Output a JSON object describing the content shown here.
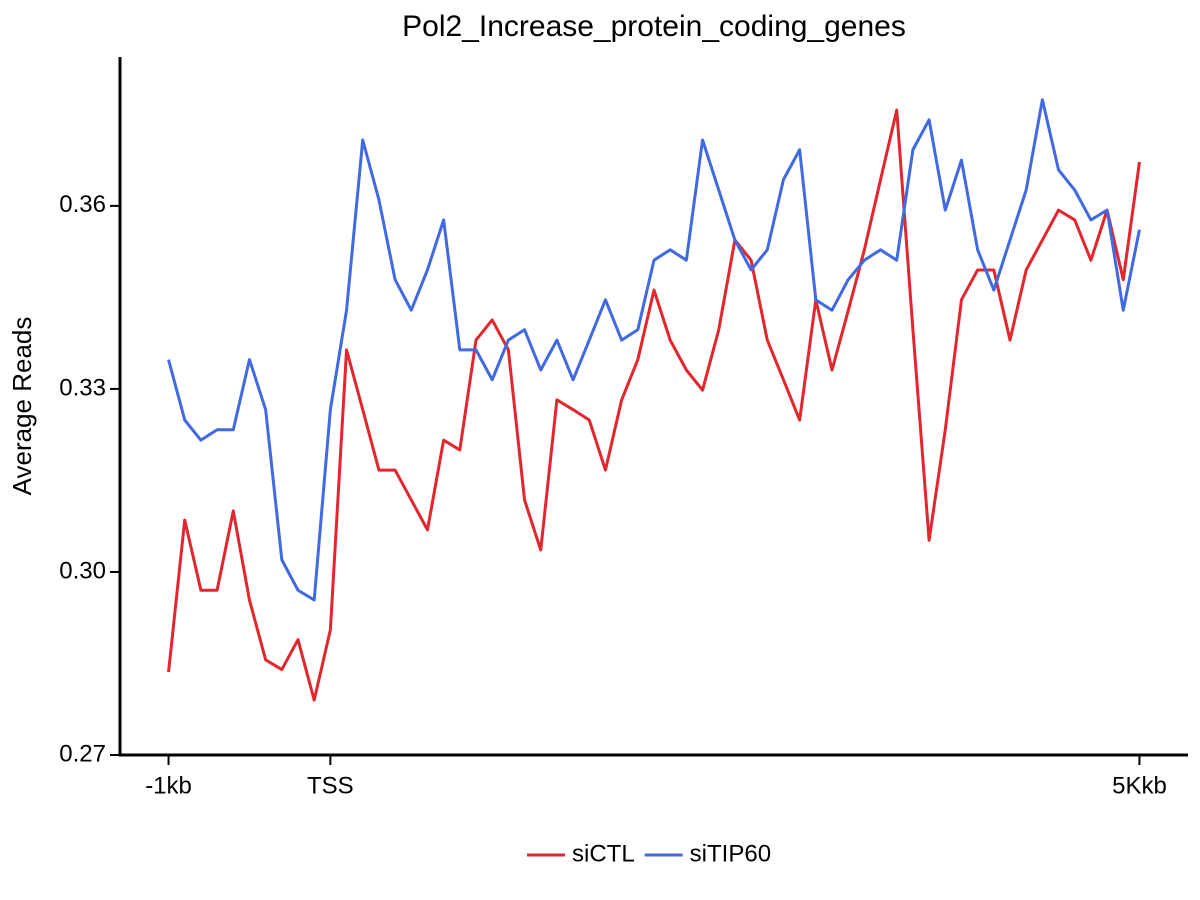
{
  "chart_data": {
    "type": "line",
    "title": "Pol2_Increase_protein_coding_genes",
    "y_label": "Average Reads",
    "x": [
      -1,
      -0.9,
      -0.8,
      -0.7,
      -0.6,
      -0.5,
      -0.4,
      -0.3,
      -0.2,
      -0.1,
      0,
      0.1,
      0.2,
      0.3,
      0.4,
      0.5,
      0.6,
      0.7,
      0.8,
      0.9,
      1,
      1.1,
      1.2,
      1.3,
      1.4,
      1.5,
      1.6,
      1.7,
      1.8,
      1.9,
      2,
      2.1,
      2.2,
      2.3,
      2.4,
      2.5,
      2.6,
      2.7,
      2.8,
      2.9,
      3,
      3.1,
      3.2,
      3.3,
      3.4,
      3.5,
      3.6,
      3.7,
      3.8,
      3.9,
      4,
      4.1,
      4.2,
      4.3,
      4.4,
      4.5,
      4.6,
      4.7,
      4.8,
      4.9,
      5
    ],
    "series": [
      {
        "name": "siCTL",
        "color": "#e3262d",
        "values": [
          0.2836,
          0.3085,
          0.297,
          0.297,
          0.31,
          0.2954,
          0.2856,
          0.284,
          0.2889,
          0.279,
          0.2905,
          0.3364,
          0.3266,
          0.3167,
          0.3167,
          0.3118,
          0.3069,
          0.3216,
          0.32,
          0.338,
          0.3413,
          0.3364,
          0.3118,
          0.3036,
          0.3282,
          0.3266,
          0.3249,
          0.3167,
          0.3282,
          0.3348,
          0.3462,
          0.338,
          0.3331,
          0.3298,
          0.3397,
          0.3544,
          0.3511,
          0.338,
          0.3315,
          0.3249,
          0.3446,
          0.3331,
          0.3428,
          0.3528,
          0.3643,
          0.3757,
          0.3397,
          0.3052,
          0.3233,
          0.3446,
          0.3495,
          0.3495,
          0.338,
          0.3495,
          0.3544,
          0.3593,
          0.3577,
          0.3511,
          0.3593,
          0.3479,
          0.3672
        ]
      },
      {
        "name": "siTIP60",
        "color": "#4169e1",
        "values": [
          0.3348,
          0.3249,
          0.3216,
          0.3233,
          0.3233,
          0.3348,
          0.3266,
          0.302,
          0.297,
          0.2954,
          0.3266,
          0.3429,
          0.3708,
          0.361,
          0.3479,
          0.3429,
          0.3495,
          0.3577,
          0.3364,
          0.3364,
          0.3315,
          0.338,
          0.3397,
          0.3331,
          0.338,
          0.3315,
          0.338,
          0.3446,
          0.338,
          0.3397,
          0.3511,
          0.3528,
          0.3511,
          0.3708,
          0.3626,
          0.3544,
          0.3495,
          0.3528,
          0.3643,
          0.3692,
          0.3446,
          0.3429,
          0.3479,
          0.3511,
          0.3528,
          0.3511,
          0.3692,
          0.3741,
          0.3593,
          0.3675,
          0.3528,
          0.3462,
          0.3544,
          0.3626,
          0.3774,
          0.3659,
          0.3626,
          0.3577,
          0.3593,
          0.3429,
          0.3561
        ]
      }
    ],
    "xlim": [
      -1.3,
      5.3
    ],
    "xticks": [
      {
        "value": -1,
        "label": "-1kb"
      },
      {
        "value": 0,
        "label": "TSS"
      },
      {
        "value": 5,
        "label": "5Kkb"
      }
    ],
    "ylim": [
      0.27,
      0.3844
    ],
    "yticks": [
      0.27,
      {
        "value": 0.3,
        "label": "0.30"
      },
      0.33,
      0.36
    ],
    "legend": "bottom"
  }
}
